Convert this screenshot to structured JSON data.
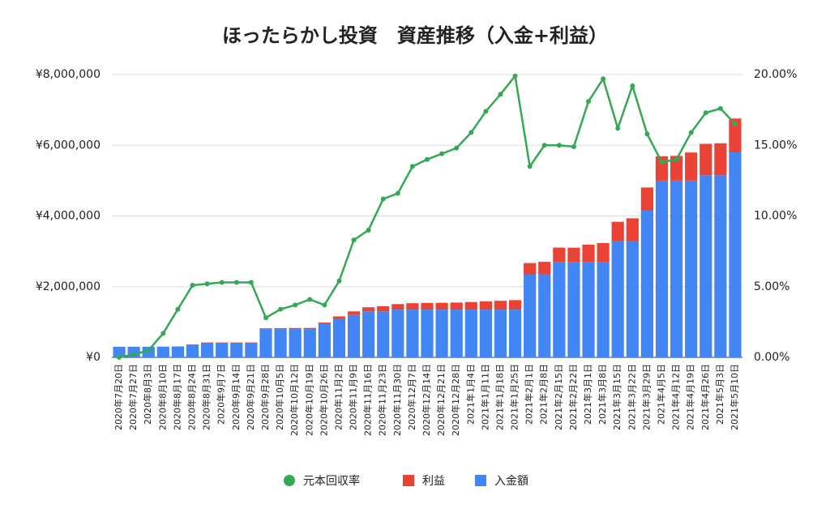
{
  "chart_data": {
    "type": "bar_line",
    "title": "ほったらかし投資　資産推移（入金+利益）",
    "categories": [
      "2020年7月20日",
      "2020年7月27日",
      "2020年8月3日",
      "2020年8月10日",
      "2020年8月17日",
      "2020年8月24日",
      "2020年8月31日",
      "2020年9月7日",
      "2020年9月14日",
      "2020年9月21日",
      "2020年9月28日",
      "2020年10月5日",
      "2020年10月12日",
      "2020年10月19日",
      "2020年10月26日",
      "2020年11月2日",
      "2020年11月9日",
      "2020年11月16日",
      "2020年11月23日",
      "2020年11月30日",
      "2020年12月7日",
      "2020年12月14日",
      "2020年12月21日",
      "2020年12月28日",
      "2021年1月4日",
      "2021年1月11日",
      "2021年1月18日",
      "2021年1月25日",
      "2021年2月1日",
      "2021年2月8日",
      "2021年2月15日",
      "2021年2月22日",
      "2021年3月1日",
      "2021年3月8日",
      "2021年3月15日",
      "2021年3月22日",
      "2021年3月29日",
      "2021年4月5日",
      "2021年4月12日",
      "2021年4月19日",
      "2021年4月26日",
      "2021年5月3日",
      "2021年5月10日"
    ],
    "series": [
      {
        "name": "元本回収率",
        "type": "line",
        "axis": "y2",
        "color": "#34a853",
        "values": [
          0,
          0.2,
          0.5,
          1.7,
          3.4,
          5.1,
          5.2,
          5.3,
          5.3,
          5.3,
          2.8,
          3.4,
          3.7,
          4.1,
          3.7,
          5.4,
          8.3,
          9.0,
          11.2,
          11.6,
          13.5,
          14.0,
          14.4,
          14.8,
          15.9,
          17.4,
          18.6,
          19.9,
          13.5,
          15.0,
          15.0,
          14.9,
          18.1,
          19.7,
          16.2,
          19.2,
          15.8,
          13.8,
          14.0,
          15.9,
          17.3,
          17.6,
          16.5
        ]
      },
      {
        "name": "利益",
        "type": "bar",
        "color": "#ea4335",
        "values": [
          0,
          600,
          1500,
          5000,
          10000,
          18000,
          21000,
          21000,
          21000,
          21000,
          22000,
          27000,
          30000,
          33000,
          35000,
          59000,
          100000,
          117000,
          146000,
          157000,
          182000,
          189000,
          194000,
          200000,
          215000,
          235000,
          251000,
          269000,
          317000,
          353000,
          405000,
          402000,
          489000,
          532000,
          535000,
          634000,
          656000,
          690000,
          700000,
          795000,
          891000,
          906000,
          957000
        ]
      },
      {
        "name": "入金額",
        "type": "bar",
        "color": "#4285f4",
        "values": [
          300000,
          300000,
          300000,
          300000,
          300000,
          350000,
          400000,
          400000,
          400000,
          400000,
          800000,
          800000,
          800000,
          800000,
          950000,
          1100000,
          1200000,
          1300000,
          1300000,
          1350000,
          1350000,
          1350000,
          1350000,
          1350000,
          1350000,
          1350000,
          1350000,
          1350000,
          2350000,
          2350000,
          2700000,
          2700000,
          2700000,
          2700000,
          3300000,
          3300000,
          4150000,
          5000000,
          5000000,
          5000000,
          5150000,
          5150000,
          5800000
        ]
      }
    ],
    "ylim": [
      0,
      8000000
    ],
    "yticks": [
      {
        "value": 0,
        "label": "¥0"
      },
      {
        "value": 2000000,
        "label": "¥2,000,000"
      },
      {
        "value": 4000000,
        "label": "¥4,000,000"
      },
      {
        "value": 6000000,
        "label": "¥6,000,000"
      },
      {
        "value": 8000000,
        "label": "¥8,000,000"
      }
    ],
    "y2lim": [
      0,
      20
    ],
    "y2ticks": [
      {
        "value": 0,
        "label": "0.00%"
      },
      {
        "value": 5,
        "label": "5.00%"
      },
      {
        "value": 10,
        "label": "10.00%"
      },
      {
        "value": 15,
        "label": "15.00%"
      },
      {
        "value": 20,
        "label": "20.00%"
      }
    ],
    "grid": true,
    "legend": "bottom"
  }
}
